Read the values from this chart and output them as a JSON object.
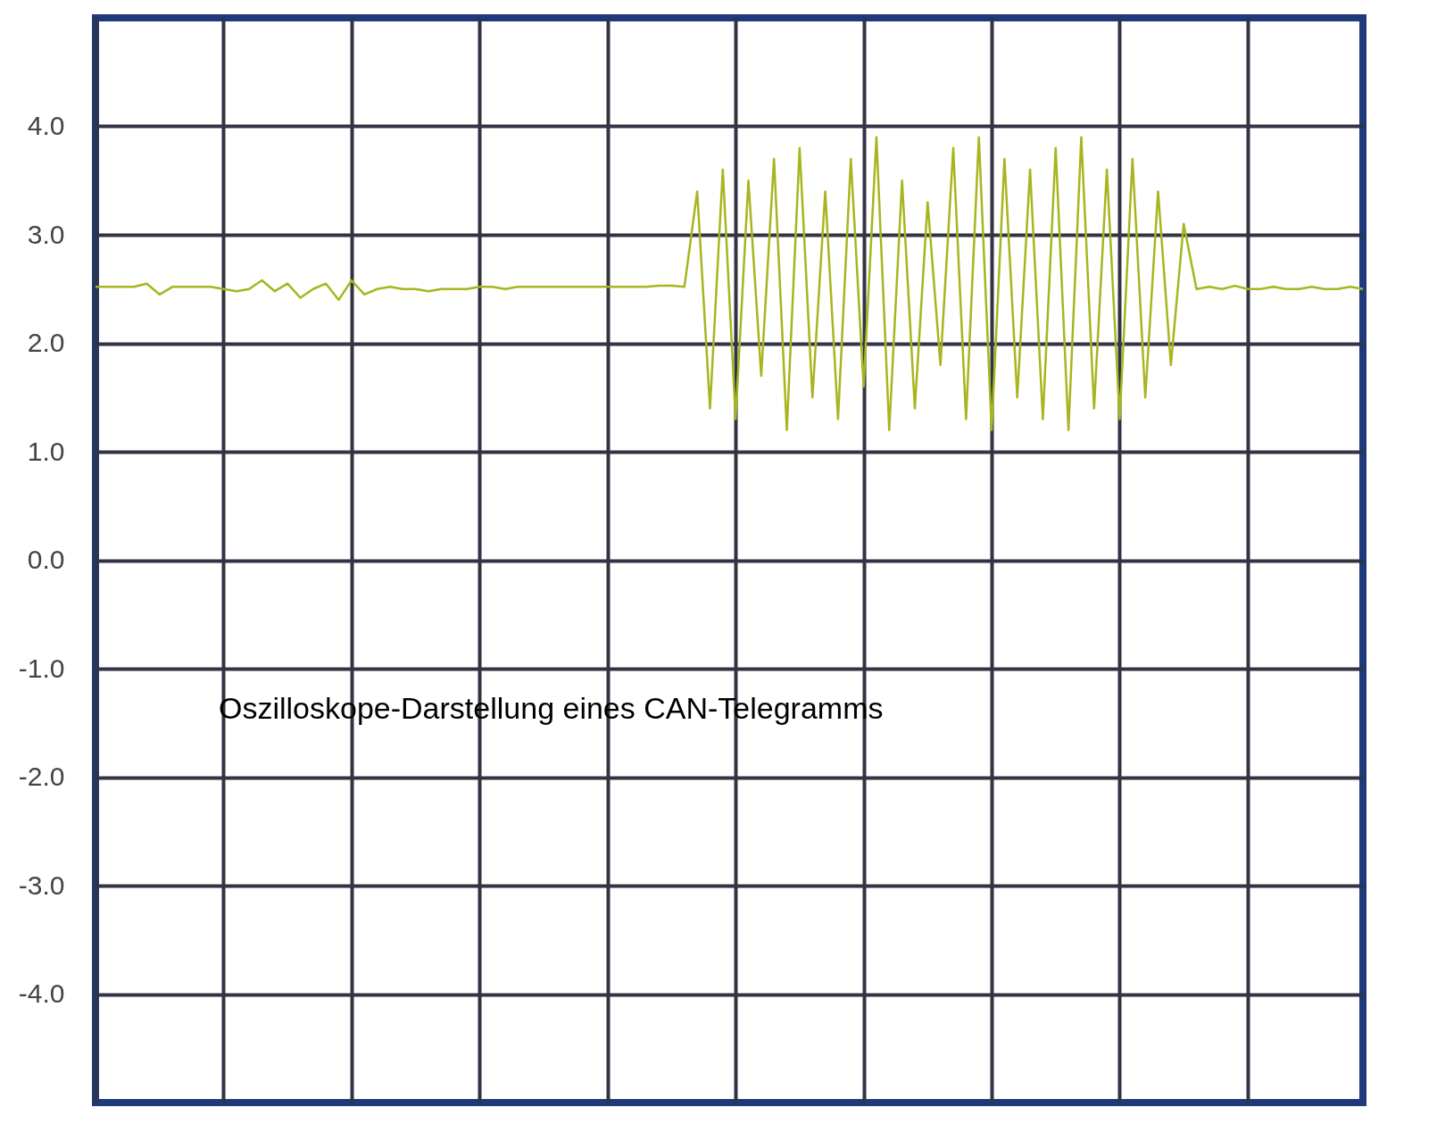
{
  "chart_data": {
    "type": "line",
    "annotations": [
      "Oszilloskope-Darstellung eines CAN-Telegramms"
    ],
    "categories": [
      null,
      null,
      null,
      null,
      null,
      null,
      null,
      null,
      null,
      null,
      null,
      null,
      null,
      null,
      null,
      null,
      null,
      null,
      null,
      null,
      null,
      null,
      null,
      null,
      null,
      null,
      null,
      null,
      null,
      null,
      null,
      null,
      null,
      null,
      null,
      null,
      null,
      null,
      null,
      null,
      null,
      null,
      null,
      null,
      null,
      null,
      null,
      null,
      null,
      null,
      null,
      null,
      null,
      null,
      null,
      null,
      null,
      null,
      null,
      null,
      null,
      null,
      null,
      null,
      null,
      null,
      null,
      null,
      null,
      null,
      null,
      null,
      null,
      null,
      null,
      null,
      null,
      null,
      null,
      null,
      null,
      null,
      null,
      null,
      null,
      null,
      null,
      null,
      null,
      null,
      null,
      null,
      null,
      null,
      null,
      null,
      null,
      null,
      null,
      null
    ],
    "series": [
      {
        "color": "#a8b51e",
        "values": [
          2.52,
          2.52,
          2.52,
          2.52,
          2.55,
          2.45,
          2.52,
          2.52,
          2.52,
          2.52,
          2.5,
          2.48,
          2.5,
          2.58,
          2.48,
          2.55,
          2.42,
          2.5,
          2.55,
          2.4,
          2.58,
          2.45,
          2.5,
          2.52,
          2.5,
          2.5,
          2.48,
          2.5,
          2.5,
          2.5,
          2.52,
          2.52,
          2.5,
          2.52,
          2.52,
          2.52,
          2.52,
          2.52,
          2.52,
          2.52,
          2.52,
          2.52,
          2.52,
          2.52,
          2.53,
          2.53,
          2.52,
          3.4,
          1.4,
          3.6,
          1.3,
          3.5,
          1.7,
          3.7,
          1.2,
          3.8,
          1.5,
          3.4,
          1.3,
          3.7,
          1.6,
          3.9,
          1.2,
          3.5,
          1.4,
          3.3,
          1.8,
          3.8,
          1.3,
          3.9,
          1.2,
          3.7,
          1.5,
          3.6,
          1.3,
          3.8,
          1.2,
          3.9,
          1.4,
          3.6,
          1.3,
          3.7,
          1.5,
          3.4,
          1.8,
          3.1,
          2.5,
          2.52,
          2.5,
          2.53,
          2.5,
          2.5,
          2.52,
          2.5,
          2.5,
          2.52,
          2.5,
          2.5,
          2.52,
          2.5
        ]
      }
    ],
    "ylim": [
      -5,
      5
    ],
    "yticks": [
      {
        "value": 4,
        "label": "4.0"
      },
      {
        "value": 3,
        "label": "3.0"
      },
      {
        "value": 2,
        "label": "2.0"
      },
      {
        "value": 1,
        "label": "1.0"
      },
      {
        "value": 0,
        "label": "0.0"
      },
      {
        "value": -1,
        "label": "-1.0"
      },
      {
        "value": -2,
        "label": "-2.0"
      },
      {
        "value": -3,
        "label": "-3.0"
      },
      {
        "value": -4,
        "label": "-4.0"
      }
    ],
    "grid": true,
    "tick_labels": "y",
    "marker": "none",
    "line_style": "solid"
  }
}
